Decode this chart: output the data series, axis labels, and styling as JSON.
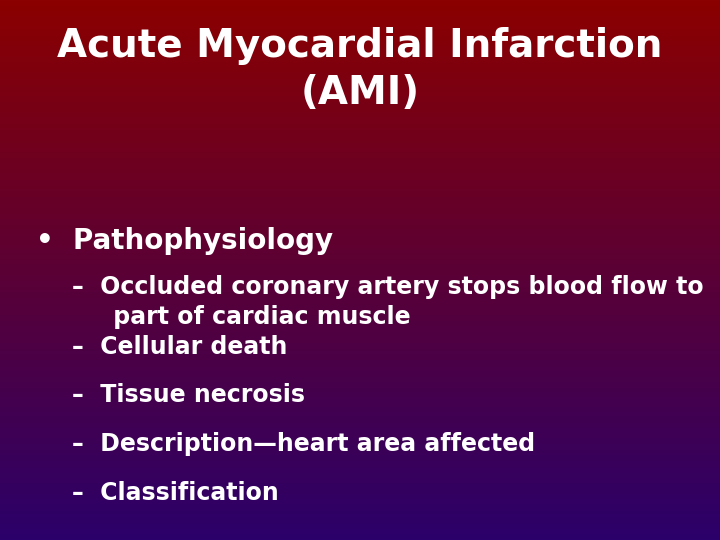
{
  "title_line1": "Acute Myocardial Infarction",
  "title_line2": "(AMI)",
  "title_fontsize": 28,
  "title_color": "#FFFFFF",
  "title_fontweight": "bold",
  "bullet_point": "•  Pathophysiology",
  "bullet_fontsize": 20,
  "bullet_color": "#FFFFFF",
  "bullet_fontweight": "bold",
  "sub_items": [
    "–  Occluded coronary artery stops blood flow to\n     part of cardiac muscle",
    "–  Cellular death",
    "–  Tissue necrosis",
    "–  Description—heart area affected",
    "–  Classification"
  ],
  "sub_fontsize": 17,
  "sub_color": "#FFFFFF",
  "sub_fontweight": "bold",
  "bg_color_top_left": "#8B0000",
  "bg_color_bottom_right": "#2B006A",
  "fig_width": 7.2,
  "fig_height": 5.4,
  "dpi": 100
}
